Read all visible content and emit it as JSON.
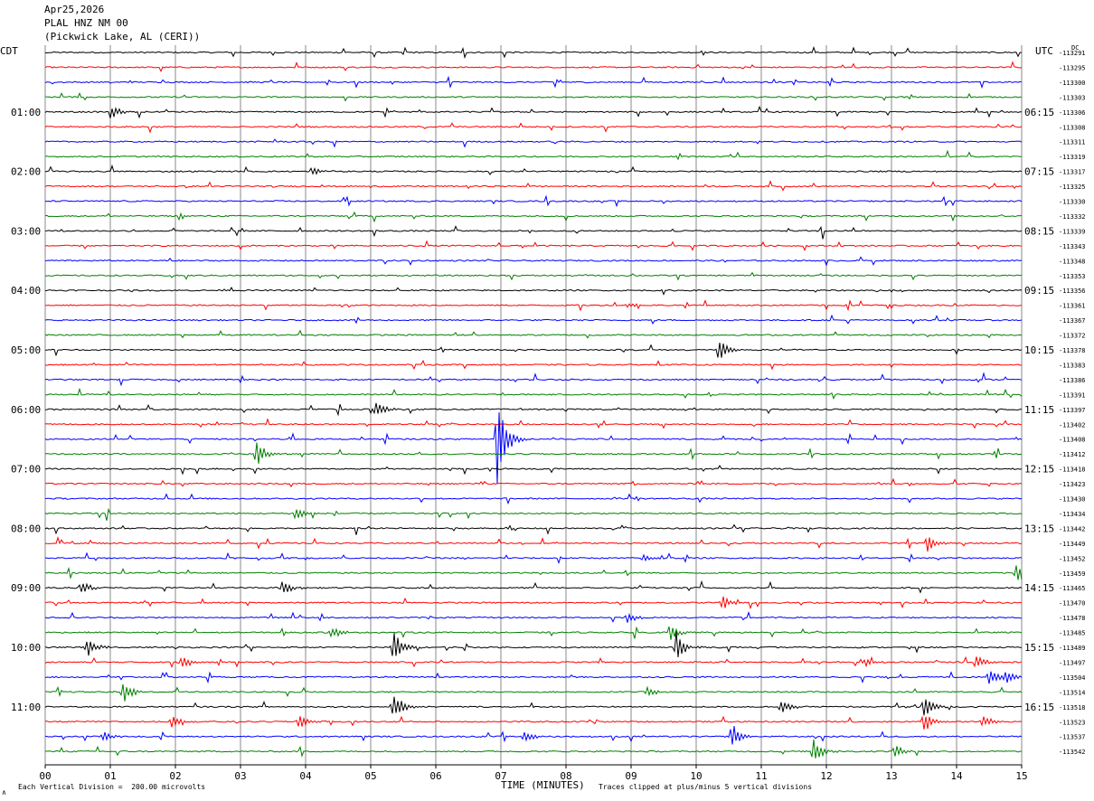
{
  "header": {
    "date": "Apr25,2026",
    "station": "PLAL HNZ NM 00",
    "location": "(Pickwick Lake, AL (CERI))"
  },
  "left_tz": "CDT",
  "right_tz": "UTC",
  "right_corner": "DC",
  "footer": {
    "scale_note": "Each Vertical Division =  200.00 microvolts",
    "xlabel": "TIME (MINUTES)",
    "clip_note": "Traces clipped at plus/minus 5 vertical divisions",
    "corner_mark": "∧"
  },
  "colors": {
    "trace_cycle": [
      "#000000",
      "#ff0000",
      "#0000ff",
      "#008000"
    ],
    "grid": "#888888"
  },
  "chart_data": {
    "type": "line",
    "title": "PLAL HNZ NM 00",
    "xlabel": "TIME (MINUTES)",
    "xlim": [
      0,
      15
    ],
    "x_ticks": [
      "00",
      "01",
      "02",
      "03",
      "04",
      "05",
      "06",
      "07",
      "08",
      "09",
      "10",
      "11",
      "12",
      "13",
      "14",
      "15"
    ],
    "left_hour_labels": [
      "01:00",
      "02:00",
      "03:00",
      "04:00",
      "05:00",
      "06:00",
      "07:00",
      "08:00",
      "09:00",
      "10:00",
      "11:00"
    ],
    "right_hour_labels": [
      "06:15",
      "07:15",
      "08:15",
      "09:15",
      "10:15",
      "11:15",
      "12:15",
      "13:15",
      "14:15",
      "15:15",
      "16:15"
    ],
    "trace_offsets": [
      "-113291",
      "-113295",
      "-113300",
      "-113303",
      "-113306",
      "-113308",
      "-113311",
      "-113319",
      "-113317",
      "-113325",
      "-113330",
      "-113332",
      "-113339",
      "-113343",
      "-113348",
      "-113353",
      "-113356",
      "-113361",
      "-113367",
      "-113372",
      "-113378",
      "-113383",
      "-113386",
      "-113391",
      "-113397",
      "-113402",
      "-113408",
      "-113412",
      "-113418",
      "-113423",
      "-113430",
      "-113434",
      "-113442",
      "-113449",
      "-113452",
      "-113459",
      "-113465",
      "-113470",
      "-113478",
      "-113485",
      "-113489",
      "-113497",
      "-113504",
      "-113514",
      "-113518",
      "-113523",
      "-113537",
      "-113542"
    ],
    "events": [
      {
        "trace": 4,
        "minute": 1.02,
        "amp": 8
      },
      {
        "trace": 8,
        "minute": 4.1,
        "amp": 5
      },
      {
        "trace": 17,
        "minute": 8.95,
        "amp": 4
      },
      {
        "trace": 20,
        "minute": 10.35,
        "amp": 13
      },
      {
        "trace": 24,
        "minute": 5.08,
        "amp": 10
      },
      {
        "trace": 26,
        "minute": 6.95,
        "amp": 65
      },
      {
        "trace": 27,
        "minute": 3.25,
        "amp": 16
      },
      {
        "trace": 31,
        "minute": 3.85,
        "amp": 8
      },
      {
        "trace": 33,
        "minute": 13.55,
        "amp": 10
      },
      {
        "trace": 34,
        "minute": 9.2,
        "amp": 4
      },
      {
        "trace": 35,
        "minute": 14.92,
        "amp": 14
      },
      {
        "trace": 36,
        "minute": 0.55,
        "amp": 10
      },
      {
        "trace": 36,
        "minute": 3.65,
        "amp": 9
      },
      {
        "trace": 37,
        "minute": 10.4,
        "amp": 9
      },
      {
        "trace": 38,
        "minute": 8.95,
        "amp": 7
      },
      {
        "trace": 39,
        "minute": 4.4,
        "amp": 8
      },
      {
        "trace": 39,
        "minute": 9.6,
        "amp": 10
      },
      {
        "trace": 40,
        "minute": 0.65,
        "amp": 12
      },
      {
        "trace": 40,
        "minute": 9.7,
        "amp": 16
      },
      {
        "trace": 40,
        "minute": 5.35,
        "amp": 20
      },
      {
        "trace": 41,
        "minute": 2.1,
        "amp": 9
      },
      {
        "trace": 41,
        "minute": 14.3,
        "amp": 9
      },
      {
        "trace": 41,
        "minute": 12.6,
        "amp": 5
      },
      {
        "trace": 42,
        "minute": 14.5,
        "amp": 13
      },
      {
        "trace": 42,
        "minute": 14.75,
        "amp": 9
      },
      {
        "trace": 43,
        "minute": 1.2,
        "amp": 14
      },
      {
        "trace": 43,
        "minute": 9.25,
        "amp": 6
      },
      {
        "trace": 44,
        "minute": 5.35,
        "amp": 18
      },
      {
        "trace": 44,
        "minute": 11.3,
        "amp": 10
      },
      {
        "trace": 44,
        "minute": 13.5,
        "amp": 14
      },
      {
        "trace": 45,
        "minute": 1.95,
        "amp": 8
      },
      {
        "trace": 45,
        "minute": 3.9,
        "amp": 10
      },
      {
        "trace": 45,
        "minute": 13.5,
        "amp": 14
      },
      {
        "trace": 45,
        "minute": 14.4,
        "amp": 8
      },
      {
        "trace": 46,
        "minute": 0.9,
        "amp": 7
      },
      {
        "trace": 46,
        "minute": 7.35,
        "amp": 8
      },
      {
        "trace": 46,
        "minute": 10.55,
        "amp": 16
      },
      {
        "trace": 47,
        "minute": 11.8,
        "amp": 18
      },
      {
        "trace": 47,
        "minute": 13.05,
        "amp": 8
      }
    ]
  }
}
